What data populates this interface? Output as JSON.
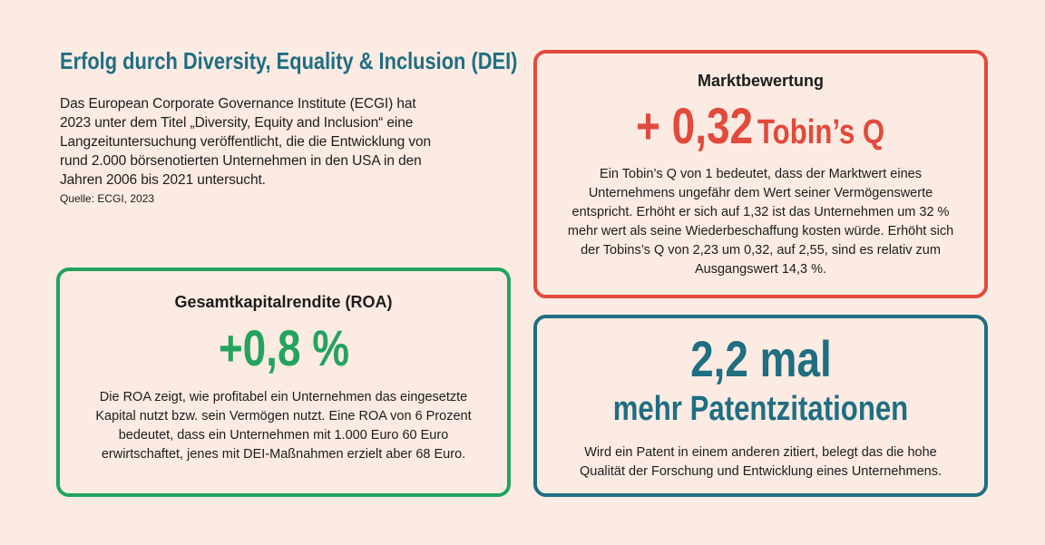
{
  "intro": {
    "title": "Erfolg durch Diversity, Equality & Inclusion (DEI)",
    "text": "Das European Corporate Governance Institute (ECGI) hat 2023 unter dem Titel „Diversity, Equity and Inclusion“ eine Langzeituntersuchung veröffentlicht, die die Entwicklung von rund 2.000 börsenotierten Unternehmen in den USA in den Jahren 2006 bis 2021 untersucht.",
    "source": "Quelle: ECGI, 2023"
  },
  "market": {
    "heading": "Marktbewertung",
    "value": "+ 0,32",
    "unit": "Tobin’s Q",
    "text": "Ein Tobin’s Q von 1 bedeutet, dass der Marktwert eines Unternehmens ungefähr dem Wert seiner Vermögenswerte entspricht. Erhöht er sich auf 1,32 ist das Unternehmen um 32 % mehr wert als seine Wiederbeschaffung kosten würde. Erhöht sich der Tobins’s Q von 2,23 um 0,32, auf 2,55, sind es relativ zum Ausgangswert 14,3 %."
  },
  "roa": {
    "heading": "Gesamtkapitalrendite (ROA)",
    "value": "+0,8 %",
    "text": "Die ROA zeigt, wie profitabel ein Unternehmen das eingesetzte Kapital nutzt bzw. sein Vermögen nutzt. Eine ROA von 6 Prozent bedeutet, dass ein Unternehmen mit 1.000 Euro 60 Euro erwirtschaftet, jenes mit DEI-Maßnahmen erzielt aber 68 Euro."
  },
  "patent": {
    "value": "2,2 mal",
    "subtitle": "mehr Patentzitationen",
    "text": "Wird ein Patent in einem anderen zitiert, belegt das die hohe Qualität der Forschung und Entwicklung eines Unternehmens."
  },
  "colors": {
    "background": "#fcebe3",
    "red": "#e24a3b",
    "green": "#23a35f",
    "teal": "#1f6e82"
  }
}
